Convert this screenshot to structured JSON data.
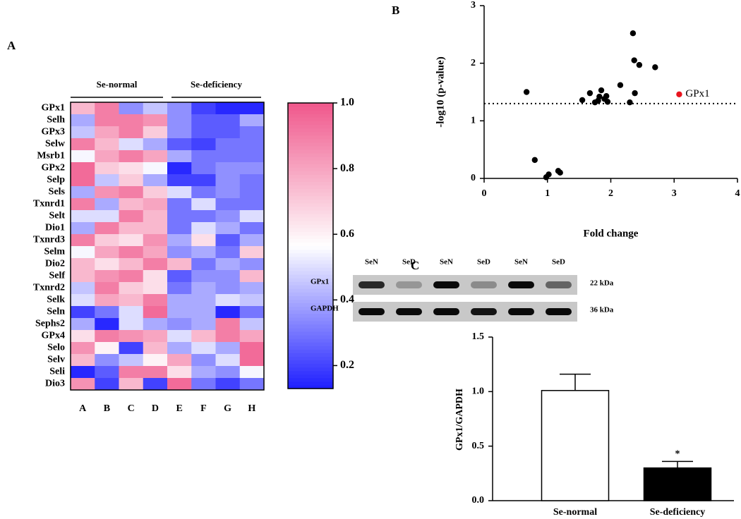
{
  "chart_data": [
    {
      "type": "heatmap",
      "panel": "A",
      "groups": [
        "Se-normal",
        "Se-deficiency"
      ],
      "rows": [
        "GPx1",
        "Selh",
        "GPx3",
        "Selw",
        "Msrb1",
        "GPx2",
        "Selp",
        "Sels",
        "Txnrd1",
        "Selt",
        "Dio1",
        "Txnrd3",
        "Selm",
        "Dio2",
        "Self",
        "Txnrd2",
        "Selk",
        "Seln",
        "Sephs2",
        "GPx4",
        "Selo",
        "Selv",
        "Seli",
        "Dio3"
      ],
      "columns": [
        "A",
        "B",
        "C",
        "D",
        "E",
        "F",
        "G",
        "H"
      ],
      "values": [
        [
          0.75,
          0.9,
          0.35,
          0.45,
          0.35,
          0.2,
          0.15,
          0.15
        ],
        [
          0.4,
          0.9,
          0.9,
          0.85,
          0.35,
          0.25,
          0.25,
          0.4
        ],
        [
          0.45,
          0.8,
          0.9,
          0.7,
          0.35,
          0.25,
          0.25,
          0.3
        ],
        [
          0.9,
          0.75,
          0.5,
          0.4,
          0.25,
          0.2,
          0.3,
          0.3
        ],
        [
          0.55,
          0.8,
          0.9,
          0.8,
          0.4,
          0.3,
          0.3,
          0.3
        ],
        [
          0.95,
          0.7,
          0.65,
          0.55,
          0.15,
          0.3,
          0.35,
          0.35
        ],
        [
          0.95,
          0.45,
          0.7,
          0.4,
          0.2,
          0.2,
          0.35,
          0.3
        ],
        [
          0.4,
          0.85,
          0.9,
          0.7,
          0.5,
          0.3,
          0.35,
          0.3
        ],
        [
          0.9,
          0.4,
          0.75,
          0.8,
          0.3,
          0.5,
          0.3,
          0.3
        ],
        [
          0.5,
          0.5,
          0.9,
          0.75,
          0.3,
          0.3,
          0.35,
          0.5
        ],
        [
          0.4,
          0.9,
          0.75,
          0.75,
          0.3,
          0.5,
          0.4,
          0.3
        ],
        [
          0.9,
          0.7,
          0.65,
          0.85,
          0.4,
          0.65,
          0.25,
          0.4
        ],
        [
          0.55,
          0.8,
          0.9,
          0.8,
          0.35,
          0.4,
          0.3,
          0.7
        ],
        [
          0.75,
          0.65,
          0.75,
          0.9,
          0.75,
          0.3,
          0.4,
          0.35
        ],
        [
          0.75,
          0.85,
          0.9,
          0.65,
          0.25,
          0.35,
          0.35,
          0.75
        ],
        [
          0.45,
          0.9,
          0.7,
          0.65,
          0.3,
          0.4,
          0.35,
          0.4
        ],
        [
          0.5,
          0.8,
          0.75,
          0.9,
          0.4,
          0.4,
          0.5,
          0.45
        ],
        [
          0.2,
          0.3,
          0.5,
          0.95,
          0.4,
          0.4,
          0.15,
          0.3
        ],
        [
          0.4,
          0.15,
          0.5,
          0.4,
          0.35,
          0.4,
          0.9,
          0.45
        ],
        [
          0.65,
          0.9,
          0.85,
          0.8,
          0.5,
          0.75,
          0.9,
          0.8
        ],
        [
          0.85,
          0.6,
          0.2,
          0.75,
          0.4,
          0.5,
          0.4,
          0.95
        ],
        [
          0.75,
          0.35,
          0.45,
          0.6,
          0.8,
          0.35,
          0.5,
          0.95
        ],
        [
          0.15,
          0.25,
          0.9,
          0.9,
          0.65,
          0.4,
          0.35,
          0.55
        ],
        [
          0.85,
          0.2,
          0.75,
          0.2,
          0.95,
          0.3,
          0.2,
          0.3
        ]
      ],
      "clim": [
        0.13,
        1.0
      ],
      "colors": [
        "#1e1eff",
        "#ffffff",
        "#f0588c"
      ],
      "cticks": [
        0.2,
        0.4,
        0.6,
        0.8,
        {
          "value": 1,
          "label": "1.0"
        }
      ]
    },
    {
      "type": "scatter",
      "panel": "B",
      "xlabel": "Fold change",
      "ylabel": "-log10 (p-value)",
      "xlim": [
        0,
        4
      ],
      "ylim": [
        0,
        3
      ],
      "xticks": [
        0,
        1,
        2,
        3,
        4
      ],
      "yticks": [
        0,
        1,
        2,
        3
      ],
      "threshold": 1.3,
      "series": [
        {
          "color": "#000000",
          "x": [
            0.67,
            0.8,
            0.98,
            1.02,
            1.17,
            1.2,
            1.55,
            1.67,
            1.75,
            1.8,
            1.82,
            1.85,
            1.9,
            1.93,
            1.95,
            2.15,
            2.3,
            2.35,
            2.37,
            2.38,
            2.45,
            2.7
          ],
          "y": [
            1.5,
            0.32,
            0.02,
            0.07,
            0.13,
            0.1,
            1.36,
            1.48,
            1.32,
            1.35,
            1.42,
            1.53,
            1.38,
            1.43,
            1.33,
            1.62,
            1.32,
            2.52,
            2.05,
            1.48,
            1.97,
            1.93
          ]
        },
        {
          "name": "GPx1",
          "color": "#e8141e",
          "x": [
            3.08
          ],
          "y": [
            1.46
          ]
        }
      ]
    },
    {
      "type": "blot",
      "panel": "C",
      "lanes": [
        "SeN",
        "SeD",
        "SeN",
        "SeD",
        "SeN",
        "SeD"
      ],
      "bands": [
        {
          "name": "GPx1",
          "size": "22 kDa",
          "values": [
            0.8,
            0.25,
            0.95,
            0.3,
            0.95,
            0.5
          ]
        },
        {
          "name": "GAPDH",
          "size": "36 kDa",
          "values": [
            0.95,
            0.95,
            0.95,
            0.9,
            0.95,
            0.95
          ]
        }
      ]
    },
    {
      "type": "bar",
      "ylabel": "GPx1/GAPDH",
      "categories": [
        "Se-normal",
        "Se-deficiency"
      ],
      "values": [
        1.01,
        0.3
      ],
      "errors": [
        0.15,
        0.06
      ],
      "colors": [
        "#ffffff",
        "#000000"
      ],
      "ylim": [
        0,
        1.5
      ],
      "yticks": [
        {
          "value": 0,
          "label": "0.0"
        },
        0.5,
        {
          "value": 1,
          "label": "1.0"
        },
        1.5
      ],
      "annotations": [
        {
          "text": "*"
        }
      ]
    }
  ]
}
